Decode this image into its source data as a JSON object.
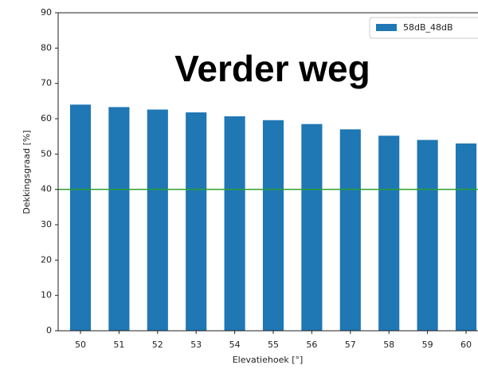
{
  "chart_data": {
    "type": "bar",
    "title": "Verder weg",
    "x_label": "Elevatiehoek [°]",
    "y_label": "Dekkingsgraad [%]",
    "categories": [
      "50",
      "51",
      "52",
      "53",
      "54",
      "55",
      "56",
      "57",
      "58",
      "59",
      "60"
    ],
    "series": [
      {
        "name": "58dB_48dB",
        "color": "#1f77b4",
        "values": [
          64,
          63.3,
          62.6,
          61.8,
          60.7,
          59.6,
          58.5,
          57,
          55.2,
          54,
          53
        ]
      }
    ],
    "reference_line": {
      "value": 40,
      "color": "#2ca02c"
    },
    "ylim": [
      0,
      90
    ],
    "yticks": [
      0,
      10,
      20,
      30,
      40,
      50,
      60,
      70,
      80,
      90
    ],
    "legend": "upper right"
  }
}
